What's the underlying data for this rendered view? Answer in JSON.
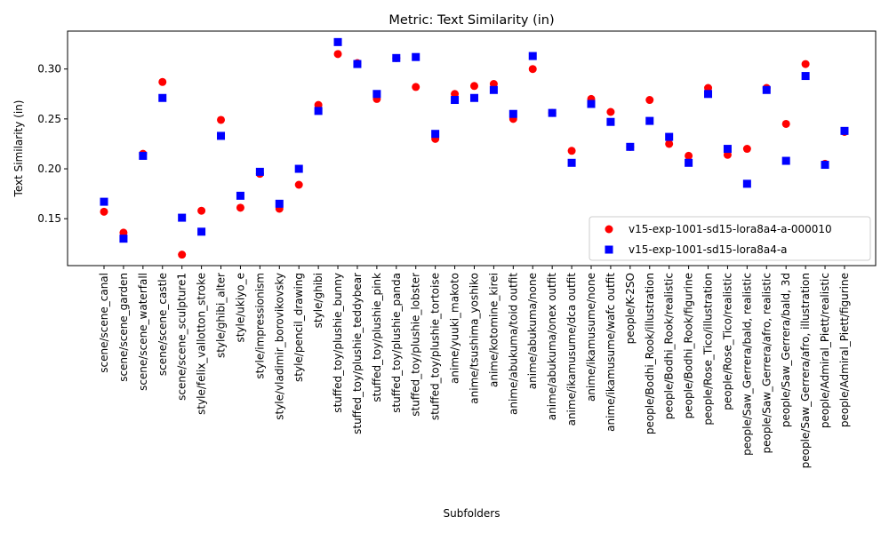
{
  "chart_data": {
    "type": "scatter",
    "title": "Metric: Text Similarity (in)",
    "xlabel": "Subfolders",
    "ylabel": "Text Similarity (in)",
    "ylim": [
      0.103,
      0.338
    ],
    "yticks": [
      0.15,
      0.2,
      0.25,
      0.3
    ],
    "ytick_labels": [
      "0.15",
      "0.20",
      "0.25",
      "0.30"
    ],
    "grid": false,
    "legend_position": "lower-right",
    "categories": [
      "scene/scene_canal",
      "scene/scene_garden",
      "scene/scene_waterfall",
      "scene/scene_castle",
      "scene/scene_sculpture1",
      "style/felix_vallotton_stroke",
      "style/ghibi_alter",
      "style/ukiyo_e",
      "style/impressionism",
      "style/vladimir_borovikovsky",
      "style/pencil_drawing",
      "style/ghibi",
      "stuffed_toy/plushie_bunny",
      "stuffed_toy/plushie_teddybear",
      "stuffed_toy/plushie_pink",
      "stuffed_toy/plushie_panda",
      "stuffed_toy/plushie_lobster",
      "stuffed_toy/plushie_tortoise",
      "anime/yuuki_makoto",
      "anime/tsushima_yoshiko",
      "anime/kotomine_kirei",
      "anime/abukuma/toid outfit",
      "anime/abukuma/none",
      "anime/abukuma/onex outfit",
      "anime/ikamusume/dca outfit",
      "anime/ikamusume/none",
      "anime/ikamusume/wafc outfit",
      "people/K-2SO",
      "people/Bodhi_Rook/illustration",
      "people/Bodhi_Rook/realistic",
      "people/Bodhi_Rook/figurine",
      "people/Rose_Tico/illustration",
      "people/Rose_Tico/realistic",
      "people/Saw_Gerrera/bald, realistic",
      "people/Saw_Gerrera/afro, realistic",
      "people/Saw_Gerrera/bald, 3d",
      "people/Saw_Gerrera/afro, illustration",
      "people/Admiral_Piett/realistic",
      "people/Admiral_Piett/figurine"
    ],
    "series": [
      {
        "name": "v15-exp-1001-sd15-lora8a4-a-000010",
        "marker": "circle",
        "color": "#ff0000",
        "values": [
          0.157,
          0.136,
          0.215,
          0.287,
          0.114,
          0.158,
          0.249,
          0.161,
          0.195,
          0.16,
          0.184,
          0.264,
          0.315,
          0.306,
          0.27,
          0.311,
          0.282,
          0.23,
          0.275,
          0.283,
          0.285,
          0.25,
          0.3,
          0.256,
          0.218,
          0.27,
          0.257,
          0.222,
          0.269,
          0.225,
          0.213,
          0.281,
          0.214,
          0.22,
          0.281,
          0.245,
          0.305,
          0.205,
          0.237
        ]
      },
      {
        "name": "v15-exp-1001-sd15-lora8a4-a",
        "marker": "square",
        "color": "#0000ff",
        "values": [
          0.167,
          0.13,
          0.213,
          0.271,
          0.151,
          0.137,
          0.233,
          0.173,
          0.197,
          0.165,
          0.2,
          0.258,
          0.327,
          0.305,
          0.275,
          0.311,
          0.312,
          0.235,
          0.269,
          0.271,
          0.279,
          0.255,
          0.313,
          0.256,
          0.206,
          0.265,
          0.247,
          0.222,
          0.248,
          0.232,
          0.206,
          0.275,
          0.22,
          0.185,
          0.279,
          0.208,
          0.293,
          0.204,
          0.238
        ]
      }
    ]
  }
}
